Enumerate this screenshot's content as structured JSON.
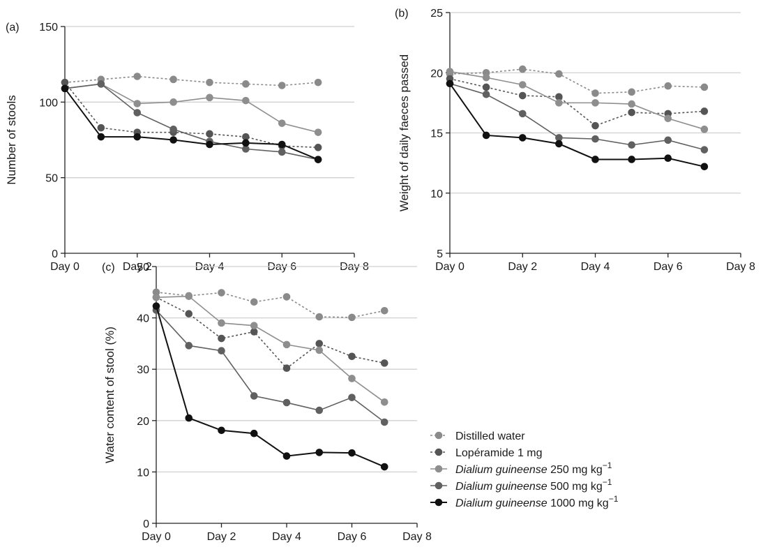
{
  "figure": {
    "legend_position": "bottom-right",
    "legend": [
      {
        "series_index": 0,
        "name": "Distilled water",
        "name_italic": "",
        "unit": "",
        "unit_sup": "",
        "color": "#8a8a8a",
        "dashed": true
      },
      {
        "series_index": 1,
        "name": "Lopéramide 1 mg",
        "name_italic": "",
        "unit": "",
        "unit_sup": "",
        "color": "#555555",
        "dashed": true
      },
      {
        "series_index": 2,
        "name": "",
        "name_italic": "Dialium guineense",
        "unit": " 250 mg kg",
        "unit_sup": "−1",
        "color": "#8e8e8e",
        "dashed": false
      },
      {
        "series_index": 3,
        "name": "",
        "name_italic": "Dialium guineense",
        "unit": " 500 mg kg",
        "unit_sup": "−1",
        "color": "#606060",
        "dashed": false
      },
      {
        "series_index": 4,
        "name": "",
        "name_italic": "Dialium guineense",
        "unit": " 1000 mg kg",
        "unit_sup": "−1",
        "color": "#111111",
        "dashed": false
      }
    ]
  },
  "chart_data": [
    {
      "type": "line",
      "panel_label": "(a)",
      "xlabel": "",
      "ylabel": "Number of stools",
      "x_ticks": [
        "Day 0",
        "Day 2",
        "Day 4",
        "Day 6",
        "Day 8"
      ],
      "xlim": [
        0,
        8
      ],
      "ylim": [
        0,
        150
      ],
      "y_ticks": [
        0,
        50,
        100,
        150
      ],
      "grid": true,
      "x": [
        0,
        1,
        2,
        3,
        4,
        5,
        6,
        7
      ],
      "series": [
        {
          "name": "Distilled water",
          "values": [
            113,
            115,
            117,
            115,
            113,
            112,
            111,
            113
          ]
        },
        {
          "name": "Lopéramide 1 mg",
          "values": [
            113,
            83,
            80,
            80,
            79,
            77,
            71,
            70
          ]
        },
        {
          "name": "Dialium guineense 250 mg kg−1",
          "values": [
            109,
            112,
            99,
            100,
            103,
            101,
            86,
            80
          ]
        },
        {
          "name": "Dialium guineense 500 mg kg−1",
          "values": [
            109,
            112,
            93,
            82,
            74,
            69,
            67,
            62
          ]
        },
        {
          "name": "Dialium guineense 1000 mg kg−1",
          "values": [
            109,
            77,
            77,
            75,
            72,
            73,
            72,
            62
          ]
        }
      ]
    },
    {
      "type": "line",
      "panel_label": "(b)",
      "xlabel": "",
      "ylabel": "Weight of daily faeces passed",
      "x_ticks": [
        "Day 0",
        "Day 2",
        "Day 4",
        "Day 6",
        "Day 8"
      ],
      "xlim": [
        0,
        8
      ],
      "ylim": [
        5,
        25
      ],
      "y_ticks": [
        5,
        10,
        15,
        20,
        25
      ],
      "grid": true,
      "x": [
        0,
        1,
        2,
        3,
        4,
        5,
        6,
        7
      ],
      "series": [
        {
          "name": "Distilled water",
          "values": [
            19.9,
            20.0,
            20.3,
            19.9,
            18.3,
            18.4,
            18.9,
            18.8
          ]
        },
        {
          "name": "Lopéramide 1 mg",
          "values": [
            19.5,
            18.8,
            18.1,
            18.0,
            15.6,
            16.7,
            16.6,
            16.8
          ]
        },
        {
          "name": "Dialium guineense 250 mg kg−1",
          "values": [
            20.1,
            19.6,
            19.0,
            17.5,
            17.5,
            17.4,
            16.2,
            15.3
          ]
        },
        {
          "name": "Dialium guineense 500 mg kg−1",
          "values": [
            19.1,
            18.2,
            16.6,
            14.6,
            14.5,
            14.0,
            14.4,
            13.6
          ]
        },
        {
          "name": "Dialium guineense 1000 mg kg−1",
          "values": [
            19.1,
            14.8,
            14.6,
            14.1,
            12.8,
            12.8,
            12.9,
            12.2
          ]
        }
      ]
    },
    {
      "type": "line",
      "panel_label": "(c)",
      "xlabel": "",
      "ylabel": "Water content of stool (%)",
      "x_ticks": [
        "Day 0",
        "Day 2",
        "Day 4",
        "Day 6",
        "Day 8"
      ],
      "xlim": [
        0,
        8
      ],
      "ylim": [
        0,
        50
      ],
      "y_ticks": [
        0,
        10,
        20,
        30,
        40,
        50
      ],
      "grid": true,
      "x": [
        0,
        1,
        2,
        3,
        4,
        5,
        6,
        7
      ],
      "series": [
        {
          "name": "Distilled water",
          "values": [
            45.0,
            44.3,
            44.9,
            43.1,
            44.1,
            40.2,
            40.1,
            41.4
          ]
        },
        {
          "name": "Lopéramide 1 mg",
          "values": [
            44.0,
            40.8,
            36.0,
            37.3,
            30.2,
            35.0,
            32.5,
            31.2
          ]
        },
        {
          "name": "Dialium guineense 250 mg kg−1",
          "values": [
            44.0,
            44.2,
            39.0,
            38.5,
            34.8,
            33.7,
            28.2,
            23.6
          ]
        },
        {
          "name": "Dialium guineense 500 mg kg−1",
          "values": [
            41.5,
            34.6,
            33.6,
            24.8,
            23.5,
            22.0,
            24.5,
            19.7
          ]
        },
        {
          "name": "Dialium guineense 1000 mg kg−1",
          "values": [
            42.3,
            20.5,
            18.1,
            17.5,
            13.1,
            13.8,
            13.7,
            11.0
          ]
        }
      ]
    }
  ]
}
